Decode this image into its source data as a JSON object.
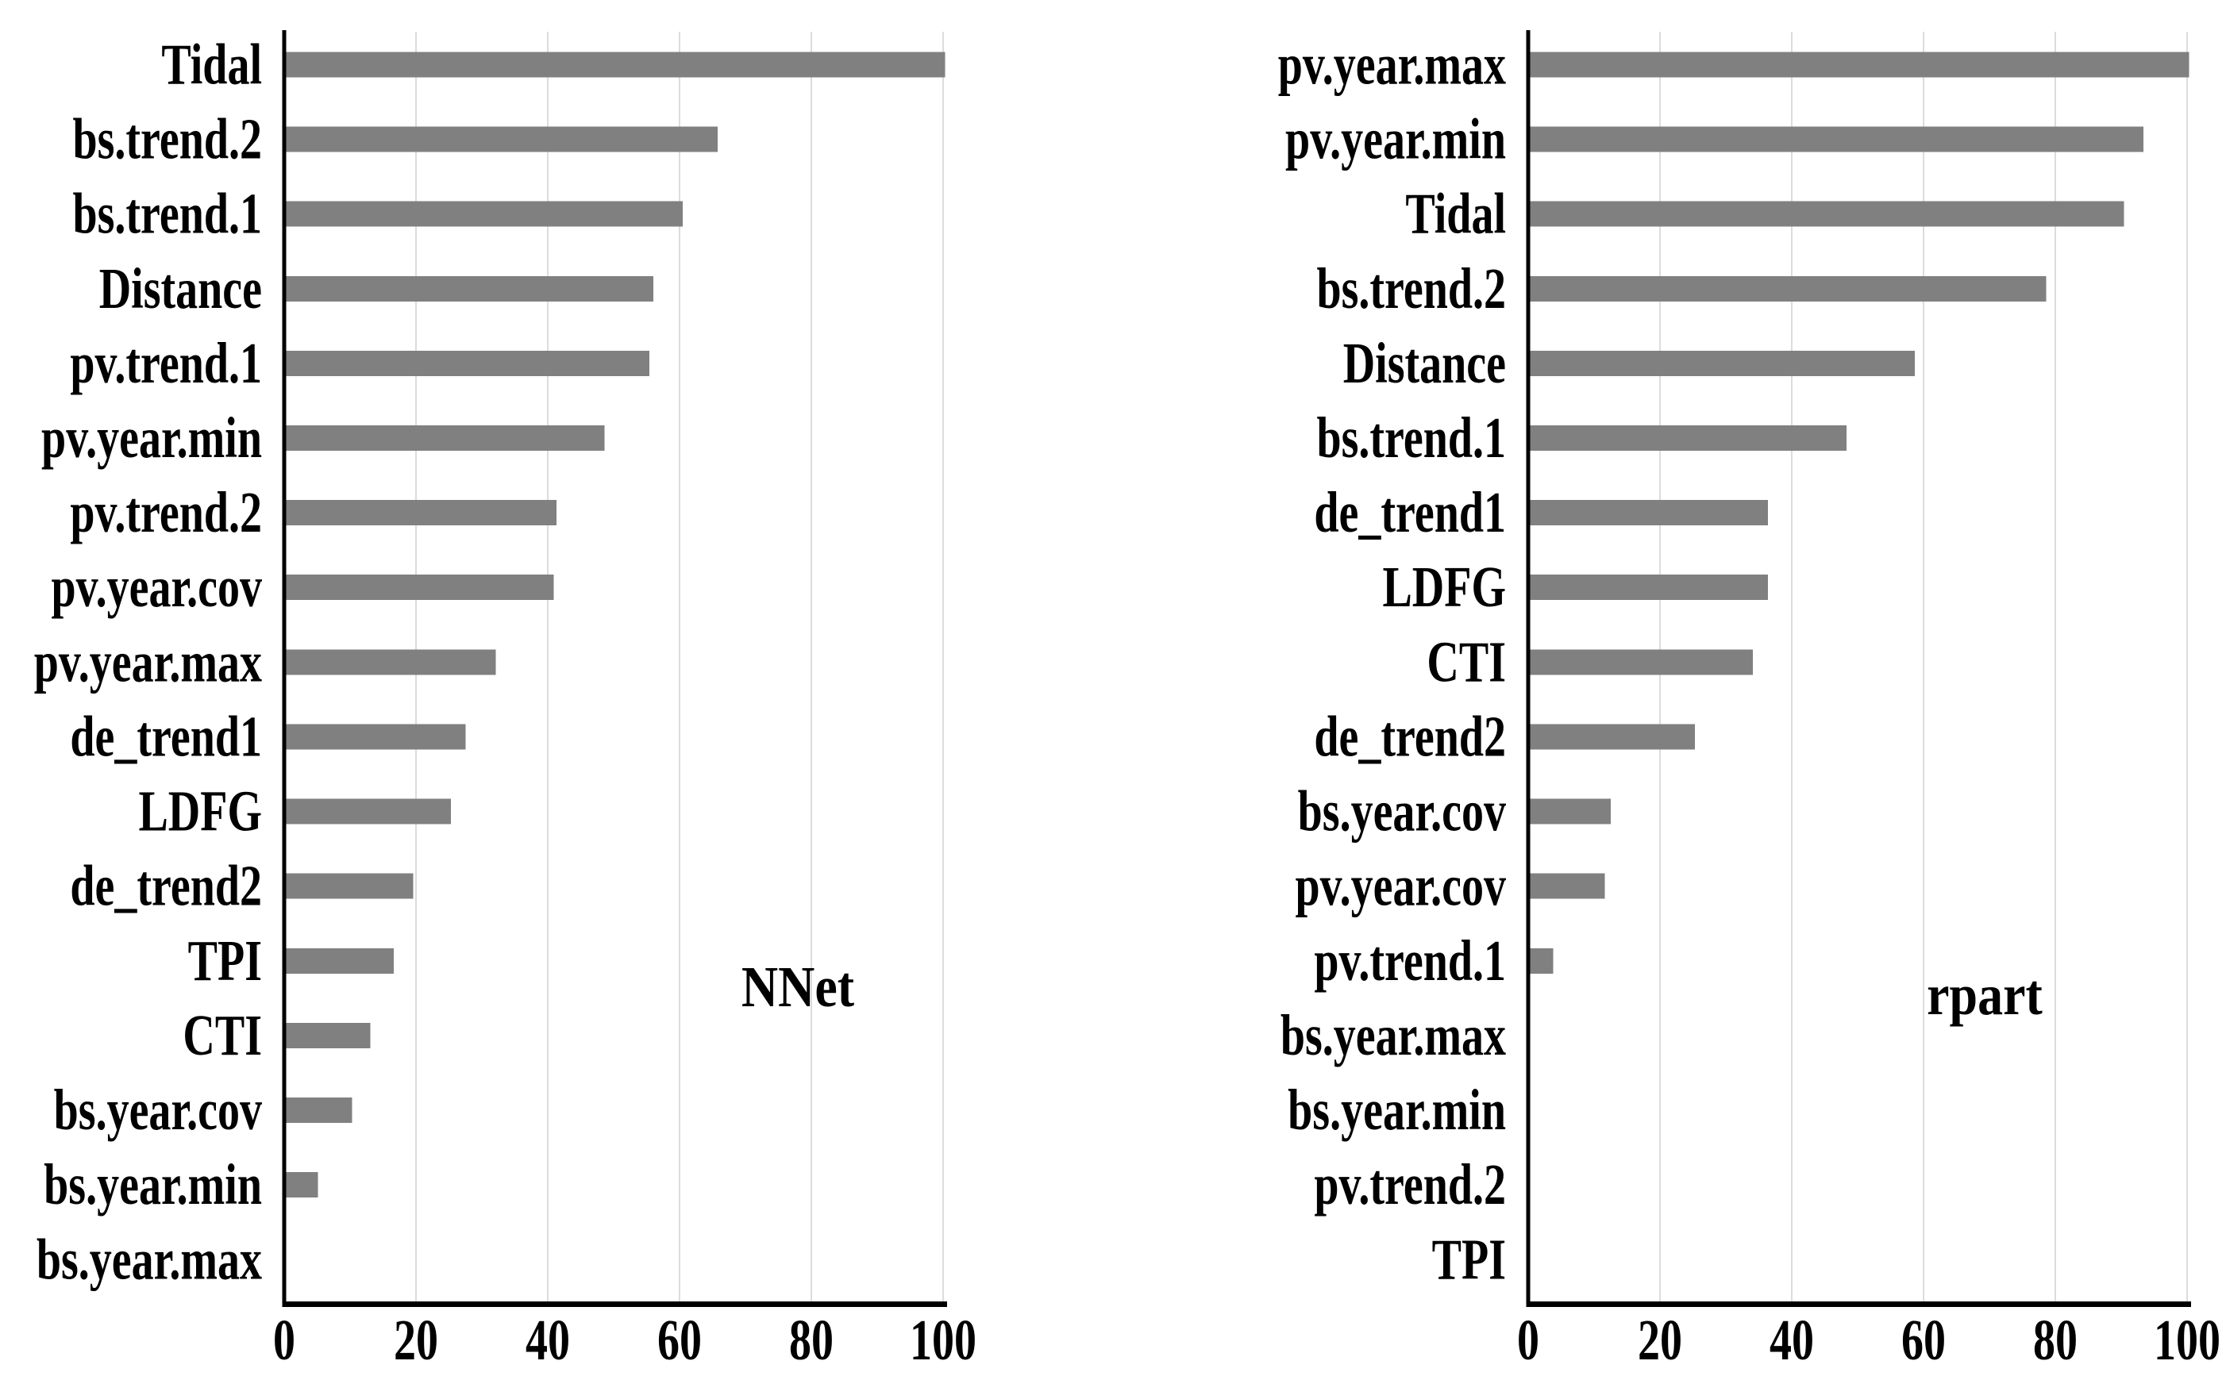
{
  "page": {
    "background": "#ffffff",
    "description": "Two horizontal bar charts of variable importance (0-100) for two models"
  },
  "chart_data": [
    {
      "type": "bar",
      "orientation": "horizontal",
      "title": "NNet",
      "title_position": "inside-lower-right",
      "categories": [
        "Tidal",
        "bs.trend.2",
        "bs.trend.1",
        "Distance",
        "pv.trend.1",
        "pv.year.min",
        "pv.trend.2",
        "pv.year.cov",
        "pv.year.max",
        "de_trend1",
        "LDFG",
        "de_trend2",
        "TPI",
        "CTI",
        "bs.year.cov",
        "bs.year.min",
        "bs.year.max"
      ],
      "values": [
        100,
        65.5,
        60.2,
        55.7,
        55.1,
        48.3,
        41.0,
        40.6,
        31.8,
        27.2,
        25.0,
        19.3,
        16.3,
        12.8,
        10.0,
        4.8,
        0
      ],
      "xlabel": "",
      "ylabel": "",
      "xlim": [
        0,
        100
      ],
      "xticks": [
        0,
        20,
        40,
        60,
        80,
        100
      ],
      "grid": "vertical",
      "legend": "none",
      "bar_color": "#808080",
      "grid_color": "#dcdcdc",
      "axis_color": "#000000",
      "text_color": "#000000",
      "panel": {
        "x0": 358,
        "x1": 1188,
        "y0": 40,
        "y1": 1640
      },
      "annotation": {
        "x": 1005,
        "y": 1268
      }
    },
    {
      "type": "bar",
      "orientation": "horizontal",
      "title": "rpart",
      "title_position": "inside-lower-right",
      "categories": [
        "pv.year.max",
        "pv.year.min",
        "Tidal",
        "bs.trend.2",
        "Distance",
        "bs.trend.1",
        "de_trend1",
        "LDFG",
        "CTI",
        "de_trend2",
        "bs.year.cov",
        "pv.year.cov",
        "pv.trend.1",
        "bs.year.max",
        "bs.year.min",
        "pv.trend.2",
        "TPI"
      ],
      "values": [
        100,
        93.1,
        90.1,
        78.3,
        58.4,
        48.0,
        36.1,
        36.1,
        33.8,
        25.0,
        12.2,
        11.3,
        3.5,
        0,
        0,
        0,
        0
      ],
      "xlabel": "",
      "ylabel": "",
      "xlim": [
        0,
        100
      ],
      "xticks": [
        0,
        20,
        40,
        60,
        80,
        100
      ],
      "grid": "vertical",
      "legend": "none",
      "bar_color": "#808080",
      "grid_color": "#dcdcdc",
      "axis_color": "#000000",
      "text_color": "#000000",
      "panel": {
        "x0": 1925,
        "x1": 2755,
        "y0": 40,
        "y1": 1640
      },
      "annotation": {
        "x": 2500,
        "y": 1278
      }
    }
  ]
}
